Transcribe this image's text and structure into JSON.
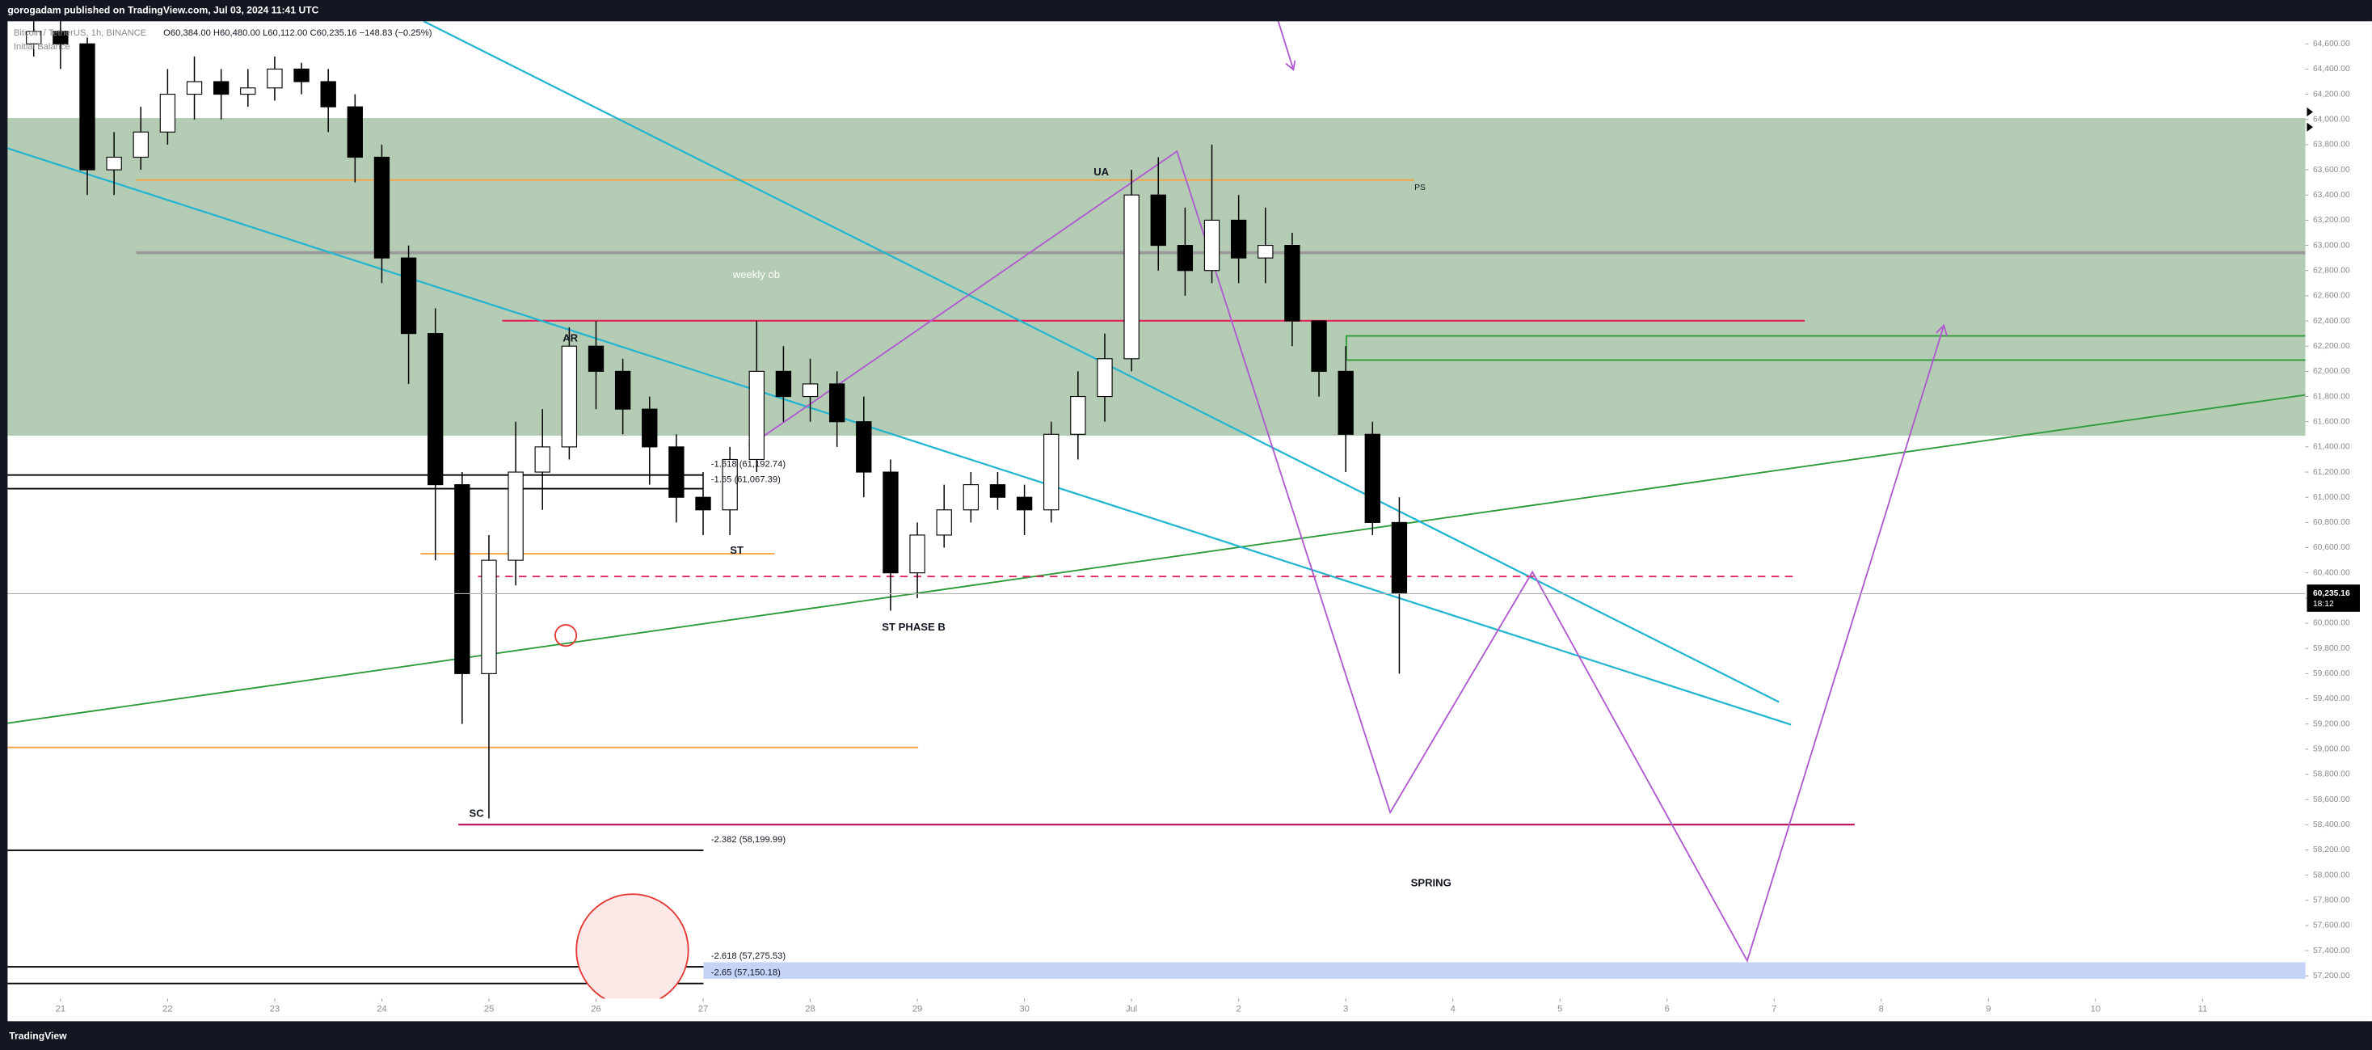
{
  "page": {
    "publish_note": "gorogadam published on TradingView.com, Jul 03, 2024 11:41 UTC",
    "symbol": "Bitcoin / TetherUS, 1h, BINANCE",
    "ohlc_line": "O60,384.00  H60,480.00  L60,112.00  C60,235.16  −148.83 (−0.25%)",
    "indicator": "Initial Balance",
    "countdown": "18:12",
    "brand": "TradingView"
  },
  "chart_data": {
    "type": "candlestick",
    "x": [
      -0.25,
      0,
      0.25,
      0.5,
      0.75,
      1,
      1.25,
      1.5,
      1.75,
      2,
      2.25,
      2.5,
      2.75,
      3,
      3.25,
      3.5,
      3.75,
      4,
      4.25,
      4.5,
      4.75,
      5,
      5.25,
      5.5,
      5.75,
      6,
      6.25,
      6.5,
      6.75,
      7,
      7.25,
      7.5,
      7.75,
      8,
      8.25,
      8.5,
      8.75,
      9,
      9.25,
      9.5,
      9.75,
      10,
      10.25,
      10.5,
      10.75,
      11,
      11.25,
      11.5,
      11.75,
      12,
      12.25,
      12.5
    ],
    "open": [
      64600,
      64700,
      64600,
      63600,
      63700,
      63900,
      64200,
      64300,
      64200,
      64250,
      64400,
      64300,
      64100,
      63700,
      62900,
      62300,
      61100,
      59600,
      60500,
      61200,
      61400,
      62200,
      62000,
      61700,
      61400,
      61000,
      60900,
      61300,
      62000,
      61800,
      61900,
      61600,
      61200,
      60400,
      60700,
      60900,
      61100,
      61000,
      60900,
      61500,
      61800,
      62100,
      63400,
      63000,
      62800,
      63200,
      62900,
      63000,
      62400,
      62000,
      61500,
      60800
    ],
    "high": [
      64780,
      64780,
      64650,
      63900,
      64100,
      64400,
      64500,
      64400,
      64400,
      64500,
      64450,
      64400,
      64200,
      63800,
      63000,
      62500,
      61200,
      60700,
      61600,
      61700,
      62350,
      62400,
      62100,
      61800,
      61500,
      61200,
      61400,
      62400,
      62200,
      62100,
      62000,
      61800,
      61300,
      60800,
      61100,
      61200,
      61200,
      61100,
      61600,
      62000,
      62300,
      63600,
      63700,
      63300,
      63800,
      63400,
      63300,
      63100,
      62400,
      62200,
      61600,
      61000
    ],
    "low": [
      64500,
      64400,
      63400,
      63400,
      63600,
      63800,
      64000,
      64000,
      64100,
      64150,
      64200,
      63900,
      63500,
      62700,
      61900,
      60500,
      59200,
      58450,
      60300,
      60900,
      61300,
      61700,
      61500,
      61100,
      60800,
      60700,
      60700,
      61200,
      61600,
      61600,
      61400,
      61000,
      60100,
      60200,
      60600,
      60800,
      60900,
      60700,
      60800,
      61300,
      61600,
      62000,
      62800,
      62600,
      62700,
      62700,
      62700,
      62200,
      61800,
      61200,
      60700,
      59600
    ],
    "close": [
      64700,
      64600,
      63600,
      63700,
      63900,
      64200,
      64300,
      64200,
      64250,
      64400,
      64300,
      64100,
      63700,
      62900,
      62300,
      61100,
      59600,
      60500,
      61200,
      61400,
      62200,
      62000,
      61700,
      61400,
      61000,
      60900,
      61300,
      62000,
      61800,
      61900,
      61600,
      61200,
      60400,
      60700,
      60900,
      61100,
      61000,
      60900,
      61500,
      61800,
      62100,
      63400,
      63000,
      62800,
      63200,
      62900,
      63000,
      62400,
      62000,
      61500,
      60800,
      60235.16
    ],
    "bull_color": "#ffffff",
    "bear_color": "#000000",
    "last_price": {
      "value": 60235.16,
      "label": "60,235.16"
    },
    "annotations": [
      "weekly ob",
      "AR",
      "ST",
      "ST PHASE B",
      "SC",
      "UA",
      "PS",
      "SPRING",
      "-1.618 (61,192.74)",
      "-1.65 (61,067.39)",
      "-2.382 (58,199.99)",
      "-2.618 (57,275.53)",
      "-2.65 (57,150.18)"
    ],
    "xlim": [
      -0.494,
      20.96
    ],
    "xticks": [
      {
        "value": 0,
        "label": "21"
      },
      {
        "value": 1,
        "label": "22"
      },
      {
        "value": 2,
        "label": "23"
      },
      {
        "value": 3,
        "label": "24"
      },
      {
        "value": 4,
        "label": "25"
      },
      {
        "value": 5,
        "label": "26"
      },
      {
        "value": 6,
        "label": "27"
      },
      {
        "value": 7,
        "label": "28"
      },
      {
        "value": 8,
        "label": "29"
      },
      {
        "value": 9,
        "label": "30"
      },
      {
        "value": 10,
        "label": "Jul"
      },
      {
        "value": 11,
        "label": "2"
      },
      {
        "value": 12,
        "label": "3"
      },
      {
        "value": 13,
        "label": "4"
      },
      {
        "value": 14,
        "label": "5"
      },
      {
        "value": 15,
        "label": "6"
      },
      {
        "value": 16,
        "label": "7"
      },
      {
        "value": 17,
        "label": "8"
      },
      {
        "value": 18,
        "label": "9"
      },
      {
        "value": 19,
        "label": "10"
      },
      {
        "value": 20,
        "label": "11"
      }
    ],
    "ylim": [
      57020,
      64780
    ],
    "yticks": [
      {
        "value": 57200,
        "label": "57,200.00"
      },
      {
        "value": 57400,
        "label": "57,400.00"
      },
      {
        "value": 57600,
        "label": "57,600.00"
      },
      {
        "value": 57800,
        "label": "57,800.00"
      },
      {
        "value": 58000,
        "label": "58,000.00"
      },
      {
        "value": 58200,
        "label": "58,200.00"
      },
      {
        "value": 58400,
        "label": "58,400.00"
      },
      {
        "value": 58600,
        "label": "58,600.00"
      },
      {
        "value": 58800,
        "label": "58,800.00"
      },
      {
        "value": 59000,
        "label": "59,000.00"
      },
      {
        "value": 59200,
        "label": "59,200.00"
      },
      {
        "value": 59400,
        "label": "59,400.00"
      },
      {
        "value": 59600,
        "label": "59,600.00"
      },
      {
        "value": 59800,
        "label": "59,800.00"
      },
      {
        "value": 60000,
        "label": "60,000.00"
      },
      {
        "value": 60200,
        "label": "60,200.00"
      },
      {
        "value": 60400,
        "label": "60,400.00"
      },
      {
        "value": 60600,
        "label": "60,600.00"
      },
      {
        "value": 60800,
        "label": "60,800.00"
      },
      {
        "value": 61000,
        "label": "61,000.00"
      },
      {
        "value": 61200,
        "label": "61,200.00"
      },
      {
        "value": 61400,
        "label": "61,400.00"
      },
      {
        "value": 61600,
        "label": "61,600.00"
      },
      {
        "value": 61800,
        "label": "61,800.00"
      },
      {
        "value": 62000,
        "label": "62,000.00"
      },
      {
        "value": 62200,
        "label": "62,200.00"
      },
      {
        "value": 62400,
        "label": "62,400.00"
      },
      {
        "value": 62600,
        "label": "62,600.00"
      },
      {
        "value": 62800,
        "label": "62,800.00"
      },
      {
        "value": 63000,
        "label": "63,000.00"
      },
      {
        "value": 63200,
        "label": "63,200.00"
      },
      {
        "value": 63400,
        "label": "63,400.00"
      },
      {
        "value": 63600,
        "label": "63,600.00"
      },
      {
        "value": 63800,
        "label": "63,800.00"
      },
      {
        "value": 64000,
        "label": "64,000.00"
      },
      {
        "value": 64200,
        "label": "64,200.00"
      },
      {
        "value": 64400,
        "label": "64,400.00"
      },
      {
        "value": 64600,
        "label": "64,600.00"
      }
    ],
    "grid": false
  }
}
